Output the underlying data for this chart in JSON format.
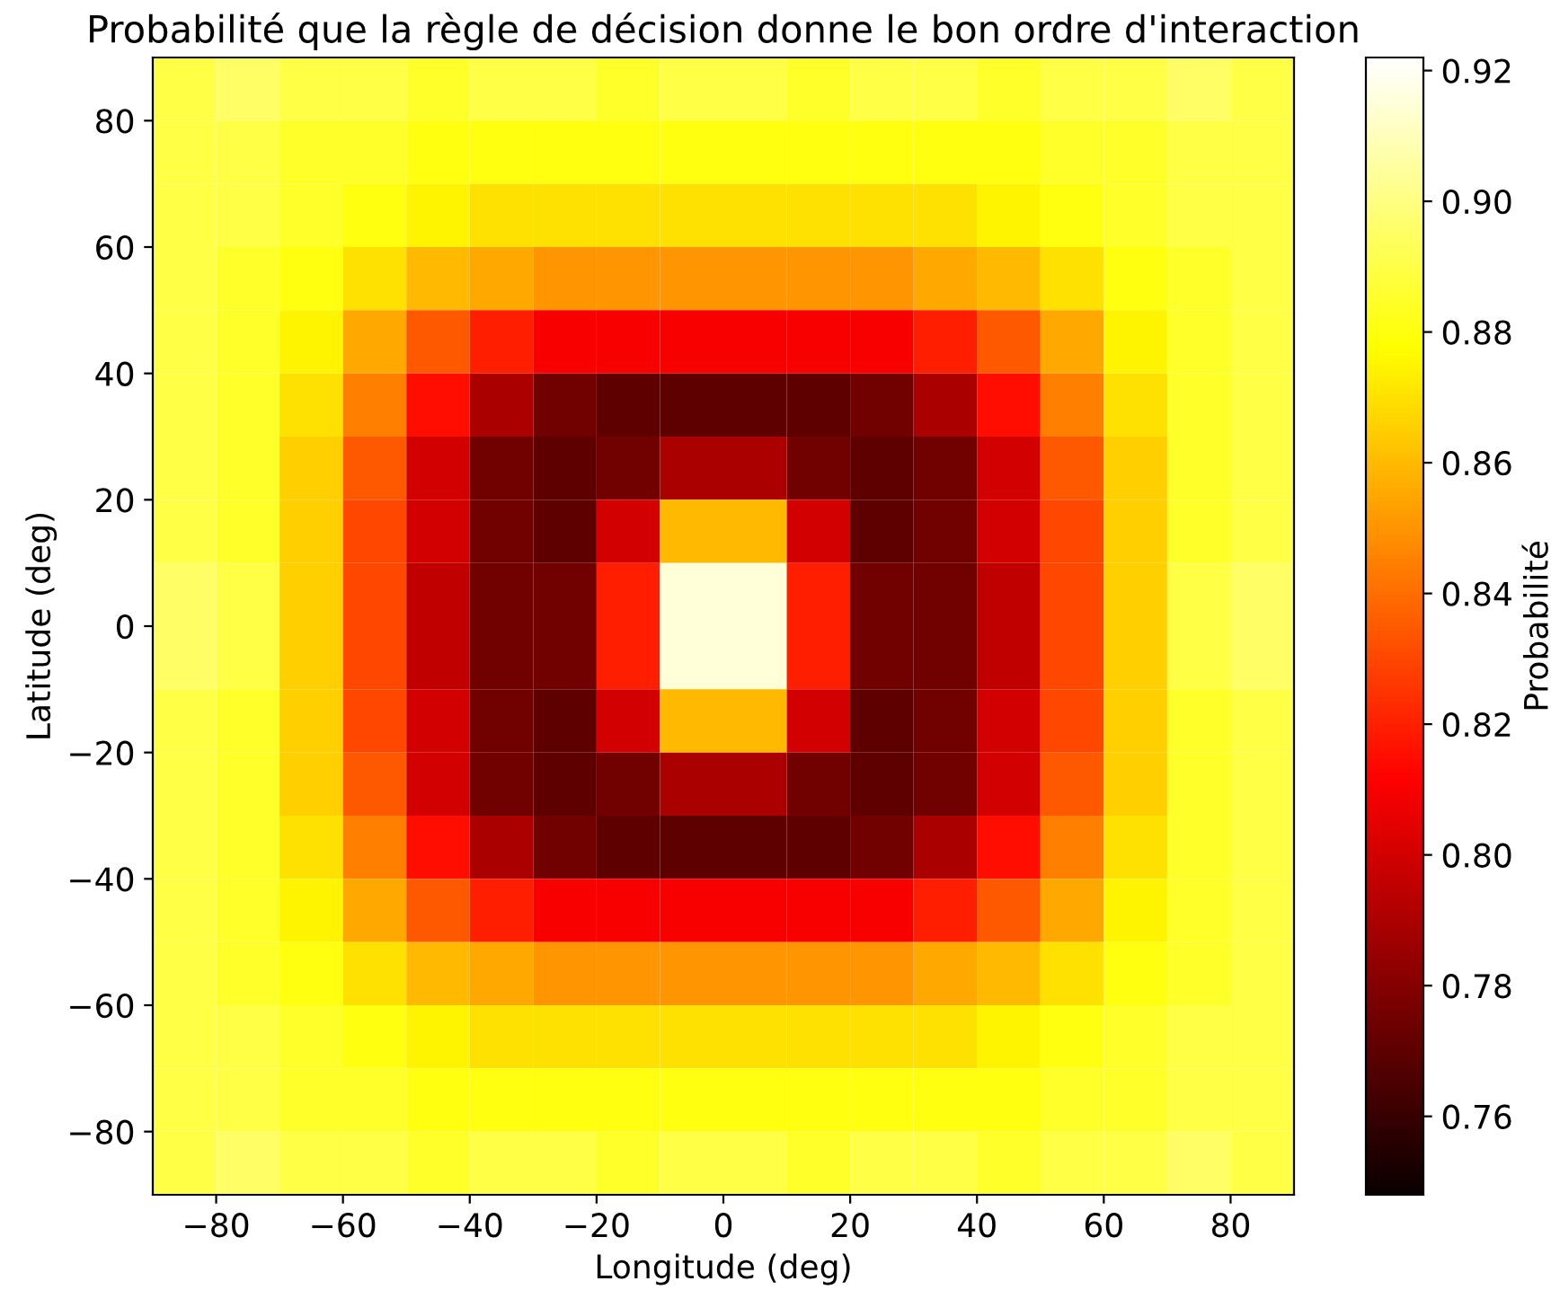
{
  "chart_data": {
    "type": "heatmap",
    "title": "Probabilité que la règle de décision donne le bon ordre d'interaction",
    "xlabel": "Longitude (deg)",
    "ylabel": "Latitude (deg)",
    "clabel": "Probabilité",
    "xlim": [
      -90,
      90
    ],
    "ylim": [
      -90,
      90
    ],
    "xticks": [
      -80,
      -60,
      -40,
      -20,
      0,
      20,
      40,
      60,
      80
    ],
    "yticks": [
      -80,
      -60,
      -40,
      -20,
      0,
      20,
      40,
      60,
      80
    ],
    "clim": [
      0.748,
      0.922
    ],
    "cticks": [
      0.76,
      0.78,
      {
        "value": 0.8,
        "label": "0.80"
      },
      0.82,
      0.84,
      0.86,
      0.88,
      {
        "value": 0.9,
        "label": "0.90"
      },
      0.92
    ],
    "cells": [
      [
        0.89,
        0.895,
        0.89,
        0.89,
        0.885,
        0.89,
        0.89,
        0.885,
        0.89,
        0.89,
        0.885,
        0.89,
        0.89,
        0.885,
        0.89,
        0.89,
        0.895,
        0.89
      ],
      [
        0.89,
        0.89,
        0.885,
        0.885,
        0.88,
        0.88,
        0.88,
        0.88,
        0.88,
        0.88,
        0.88,
        0.88,
        0.88,
        0.88,
        0.885,
        0.885,
        0.89,
        0.89
      ],
      [
        0.89,
        0.89,
        0.885,
        0.88,
        0.875,
        0.87,
        0.87,
        0.87,
        0.87,
        0.87,
        0.87,
        0.87,
        0.87,
        0.875,
        0.88,
        0.885,
        0.89,
        0.89
      ],
      [
        0.89,
        0.885,
        0.88,
        0.87,
        0.86,
        0.855,
        0.85,
        0.85,
        0.85,
        0.85,
        0.85,
        0.85,
        0.855,
        0.86,
        0.87,
        0.88,
        0.885,
        0.89
      ],
      [
        0.89,
        0.885,
        0.875,
        0.855,
        0.835,
        0.82,
        0.81,
        0.81,
        0.81,
        0.81,
        0.81,
        0.81,
        0.82,
        0.835,
        0.855,
        0.875,
        0.885,
        0.89
      ],
      [
        0.89,
        0.885,
        0.87,
        0.845,
        0.815,
        0.79,
        0.775,
        0.77,
        0.77,
        0.77,
        0.77,
        0.775,
        0.79,
        0.815,
        0.845,
        0.87,
        0.885,
        0.89
      ],
      [
        0.89,
        0.885,
        0.865,
        0.835,
        0.8,
        0.775,
        0.77,
        0.775,
        0.79,
        0.79,
        0.775,
        0.77,
        0.775,
        0.8,
        0.835,
        0.865,
        0.885,
        0.89
      ],
      [
        0.89,
        0.885,
        0.865,
        0.83,
        0.8,
        0.775,
        0.77,
        0.8,
        0.86,
        0.86,
        0.8,
        0.77,
        0.775,
        0.8,
        0.83,
        0.865,
        0.885,
        0.89
      ],
      [
        0.895,
        0.89,
        0.865,
        0.83,
        0.795,
        0.775,
        0.775,
        0.82,
        0.915,
        0.915,
        0.82,
        0.775,
        0.775,
        0.795,
        0.83,
        0.865,
        0.89,
        0.895
      ],
      [
        0.895,
        0.89,
        0.865,
        0.83,
        0.795,
        0.775,
        0.775,
        0.82,
        0.915,
        0.915,
        0.82,
        0.775,
        0.775,
        0.795,
        0.83,
        0.865,
        0.89,
        0.895
      ],
      [
        0.89,
        0.885,
        0.865,
        0.83,
        0.8,
        0.775,
        0.77,
        0.8,
        0.86,
        0.86,
        0.8,
        0.77,
        0.775,
        0.8,
        0.83,
        0.865,
        0.885,
        0.89
      ],
      [
        0.89,
        0.885,
        0.865,
        0.835,
        0.8,
        0.775,
        0.77,
        0.775,
        0.79,
        0.79,
        0.775,
        0.77,
        0.775,
        0.8,
        0.835,
        0.865,
        0.885,
        0.89
      ],
      [
        0.89,
        0.885,
        0.87,
        0.845,
        0.815,
        0.79,
        0.775,
        0.77,
        0.77,
        0.77,
        0.77,
        0.775,
        0.79,
        0.815,
        0.845,
        0.87,
        0.885,
        0.89
      ],
      [
        0.89,
        0.885,
        0.875,
        0.855,
        0.835,
        0.82,
        0.81,
        0.81,
        0.81,
        0.81,
        0.81,
        0.81,
        0.82,
        0.835,
        0.855,
        0.875,
        0.885,
        0.89
      ],
      [
        0.89,
        0.885,
        0.88,
        0.87,
        0.86,
        0.855,
        0.85,
        0.85,
        0.85,
        0.85,
        0.85,
        0.85,
        0.855,
        0.86,
        0.87,
        0.88,
        0.885,
        0.89
      ],
      [
        0.89,
        0.89,
        0.885,
        0.88,
        0.875,
        0.87,
        0.87,
        0.87,
        0.87,
        0.87,
        0.87,
        0.87,
        0.87,
        0.875,
        0.88,
        0.885,
        0.89,
        0.89
      ],
      [
        0.89,
        0.89,
        0.885,
        0.885,
        0.88,
        0.88,
        0.88,
        0.88,
        0.88,
        0.88,
        0.88,
        0.88,
        0.88,
        0.88,
        0.885,
        0.885,
        0.89,
        0.89
      ],
      [
        0.89,
        0.895,
        0.89,
        0.89,
        0.885,
        0.89,
        0.89,
        0.885,
        0.89,
        0.89,
        0.885,
        0.89,
        0.89,
        0.885,
        0.89,
        0.89,
        0.895,
        0.89
      ]
    ]
  }
}
